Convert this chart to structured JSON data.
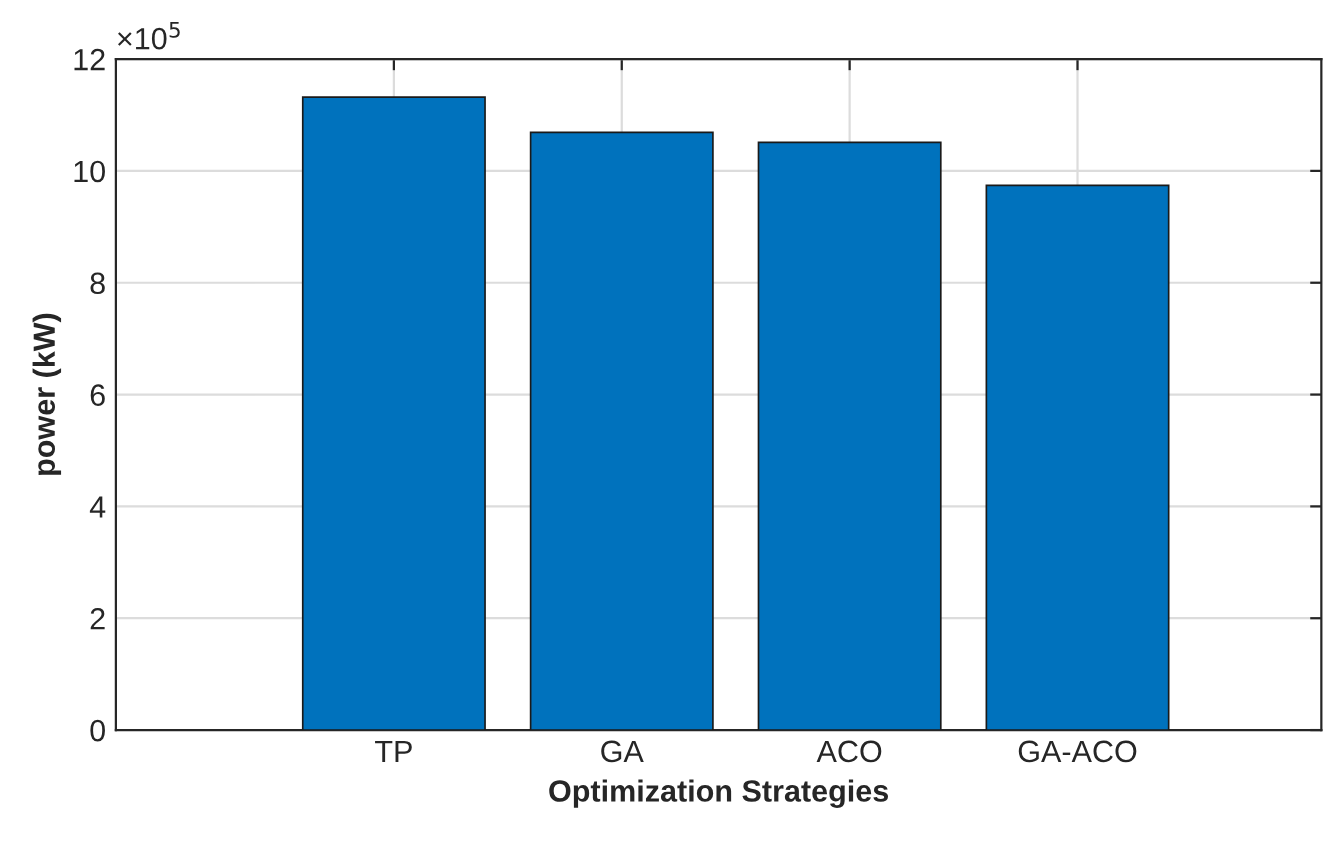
{
  "chart_data": {
    "type": "bar",
    "xlabel": "Optimization Strategies",
    "ylabel": "power (kW)",
    "categories": [
      "TP",
      "GA",
      "ACO",
      "GA-ACO"
    ],
    "values": [
      11.32,
      10.69,
      10.51,
      9.74
    ],
    "color": "#0072bd",
    "ylim": [
      0,
      12
    ],
    "yticks": [
      0,
      2,
      4,
      6,
      8,
      10,
      12
    ],
    "grid": true,
    "annotations": [
      "×10$^{5}$"
    ]
  }
}
